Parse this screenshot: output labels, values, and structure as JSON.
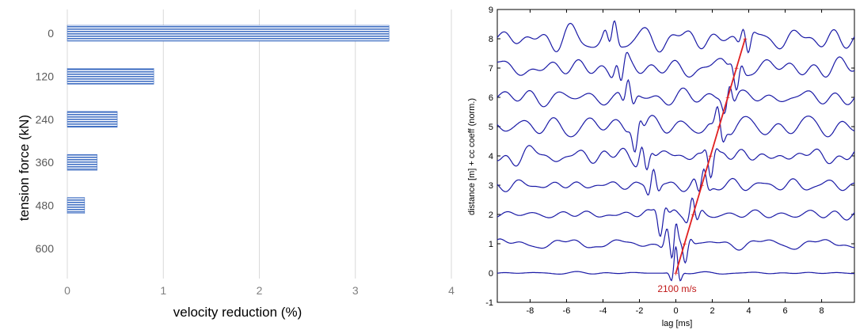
{
  "chart_data": [
    {
      "type": "bar",
      "orientation": "horizontal",
      "title": "",
      "xlabel": "velocity reduction (%)",
      "ylabel": "tension force (kN)",
      "categories": [
        "0",
        "120",
        "240",
        "360",
        "480",
        "600"
      ],
      "values": [
        3.35,
        0.9,
        0.52,
        0.31,
        0.18,
        0.0
      ],
      "xlim": [
        0,
        4
      ],
      "xticks": [
        "0",
        "1",
        "2",
        "3",
        "4"
      ],
      "grid": true,
      "bar_color": "#4472C4",
      "bar_fill": "horizontal-stripes"
    },
    {
      "type": "line",
      "title": "",
      "xlabel": "lag [ms]",
      "ylabel": "distance [m] + cc coeff (norm.)",
      "xlim": [
        -9.8,
        9.8
      ],
      "ylim": [
        -1,
        9
      ],
      "xticks": [
        "-8",
        "-6",
        "-4",
        "-2",
        "0",
        "2",
        "4",
        "6",
        "8"
      ],
      "yticks": [
        "-1",
        "0",
        "1",
        "2",
        "3",
        "4",
        "5",
        "6",
        "7",
        "8",
        "9"
      ],
      "trace_color": "#1a1aa6",
      "trace_offsets": [
        0,
        1,
        2,
        3,
        4,
        5,
        6,
        7,
        8
      ],
      "fit_line": {
        "color": "#e02020",
        "x": [
          0.0,
          3.8
        ],
        "y": [
          0,
          8
        ],
        "label": "2100 m/s"
      }
    }
  ]
}
